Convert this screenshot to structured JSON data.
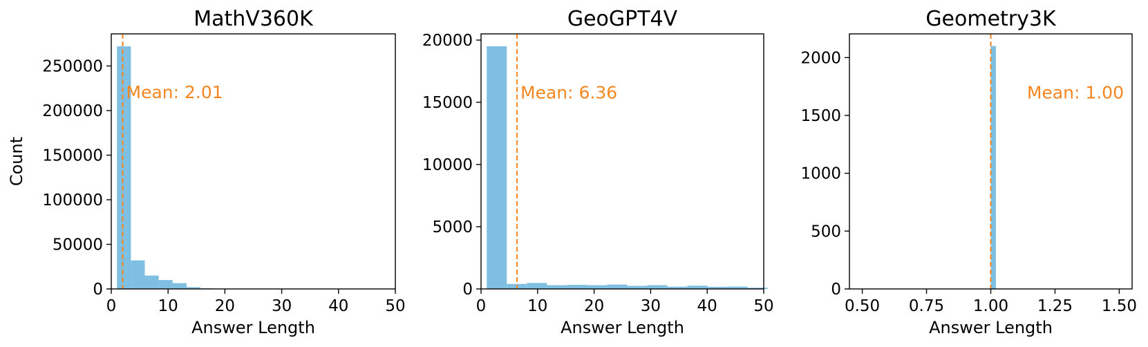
{
  "chart_data": [
    {
      "type": "bar",
      "title": "MathV360K",
      "xlabel": "Answer Length",
      "ylabel": "Count",
      "xlim": [
        0,
        50
      ],
      "ylim": [
        0,
        286000
      ],
      "xticks": [
        0,
        10,
        20,
        30,
        40,
        50
      ],
      "yticks": [
        0,
        50000,
        100000,
        150000,
        200000,
        250000
      ],
      "bin_width": 2.45,
      "bins": [
        {
          "x0": 1.0,
          "count": 272000
        },
        {
          "x0": 3.45,
          "count": 32000
        },
        {
          "x0": 5.9,
          "count": 15000
        },
        {
          "x0": 8.35,
          "count": 10000
        },
        {
          "x0": 10.8,
          "count": 6500
        },
        {
          "x0": 13.25,
          "count": 2000
        },
        {
          "x0": 15.7,
          "count": 700
        },
        {
          "x0": 18.15,
          "count": 300
        }
      ],
      "mean": 2.01,
      "mean_label": "Mean: 2.01",
      "mean_label_y": 221000,
      "mean_label_anchor": "start"
    },
    {
      "type": "bar",
      "title": "GeoGPT4V",
      "xlabel": "Answer Length",
      "ylabel": "",
      "xlim": [
        0,
        50
      ],
      "ylim": [
        0,
        20500
      ],
      "xticks": [
        0,
        10,
        20,
        30,
        40,
        50
      ],
      "yticks": [
        0,
        5000,
        10000,
        15000,
        20000
      ],
      "bin_width": 3.55,
      "bins": [
        {
          "x0": 1.0,
          "count": 19500
        },
        {
          "x0": 4.55,
          "count": 400
        },
        {
          "x0": 8.1,
          "count": 480
        },
        {
          "x0": 11.65,
          "count": 300
        },
        {
          "x0": 15.2,
          "count": 330
        },
        {
          "x0": 18.75,
          "count": 300
        },
        {
          "x0": 22.3,
          "count": 350
        },
        {
          "x0": 25.85,
          "count": 250
        },
        {
          "x0": 29.4,
          "count": 300
        },
        {
          "x0": 32.95,
          "count": 180
        },
        {
          "x0": 36.5,
          "count": 260
        },
        {
          "x0": 40.05,
          "count": 170
        },
        {
          "x0": 43.6,
          "count": 190
        },
        {
          "x0": 47.15,
          "count": 100
        }
      ],
      "mean": 6.36,
      "mean_label": "Mean: 6.36",
      "mean_label_y": 15800,
      "mean_label_anchor": "start"
    },
    {
      "type": "bar",
      "title": "Geometry3K",
      "xlabel": "Answer Length",
      "ylabel": "",
      "xlim": [
        0.45,
        1.55
      ],
      "ylim": [
        0,
        2205
      ],
      "xticks": [
        0.5,
        0.75,
        1.0,
        1.25,
        1.5
      ],
      "xtick_labels": [
        "0.50",
        "0.75",
        "1.00",
        "1.25",
        "1.50"
      ],
      "yticks": [
        0,
        500,
        1000,
        1500,
        2000
      ],
      "bin_width": 0.02,
      "bins": [
        {
          "x0": 1.0,
          "count": 2100
        }
      ],
      "mean": 1.0,
      "mean_label": "Mean: 1.00",
      "mean_label_y": 1700,
      "mean_label_anchor": "end"
    }
  ],
  "colors": {
    "bar": "#7fbfe2",
    "mean_line": "#f5861f"
  }
}
